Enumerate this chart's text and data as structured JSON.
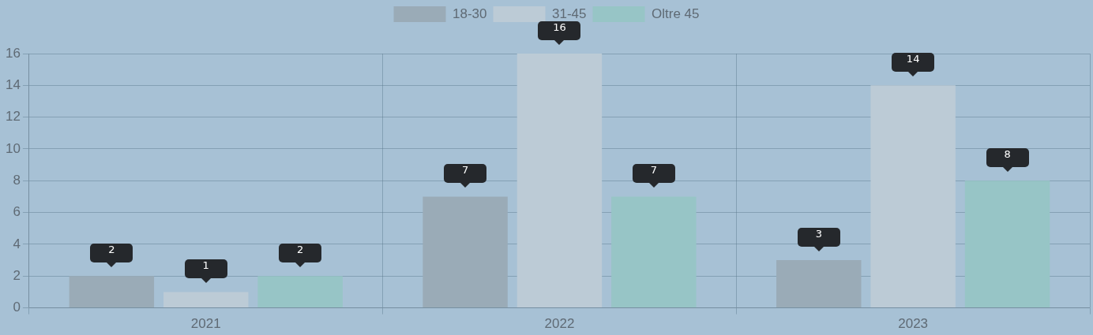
{
  "chart_data": {
    "type": "bar",
    "categories": [
      "2021",
      "2022",
      "2023"
    ],
    "series": [
      {
        "name": "18-30",
        "color": "#9aabb7",
        "values": [
          2,
          7,
          3
        ]
      },
      {
        "name": "31-45",
        "color": "#bccbd6",
        "values": [
          1,
          16,
          14
        ]
      },
      {
        "name": "Oltre 45",
        "color": "#97c5c6",
        "values": [
          2,
          7,
          8
        ]
      }
    ],
    "ylim": [
      0,
      16
    ],
    "yticks": [
      0,
      2,
      4,
      6,
      8,
      10,
      12,
      14,
      16
    ],
    "grid": true,
    "legend": "top",
    "data_labels": true
  }
}
